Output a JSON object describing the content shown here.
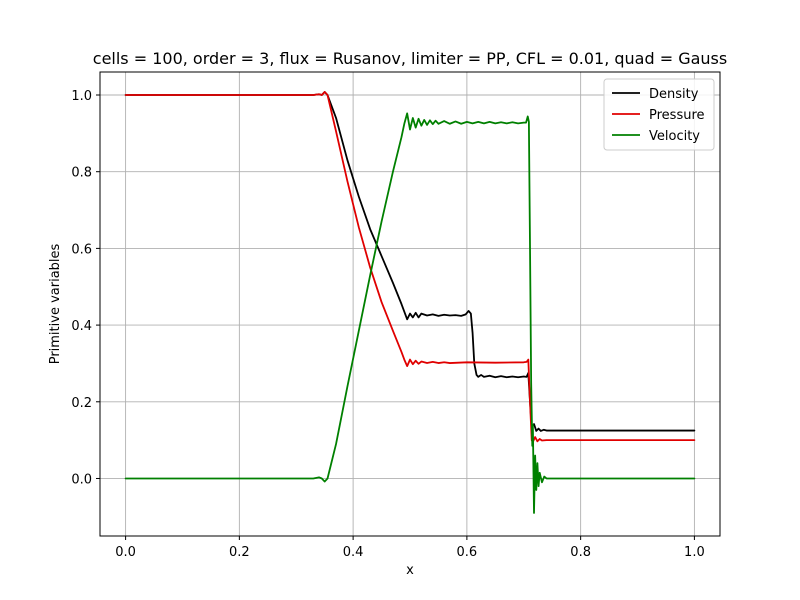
{
  "chart_data": {
    "type": "line",
    "title": "cells = 100, order = 3, flux = Rusanov, limiter = PP, CFL = 0.01, quad = Gauss",
    "xlabel": "x",
    "ylabel": "Primitive variables",
    "xlim": [
      -0.045,
      1.045
    ],
    "ylim": [
      -0.15,
      1.06
    ],
    "xticks": [
      0.0,
      0.2,
      0.4,
      0.6,
      0.8,
      1.0
    ],
    "xtick_labels": [
      "0.0",
      "0.2",
      "0.4",
      "0.6",
      "0.8",
      "1.0"
    ],
    "yticks": [
      0.0,
      0.2,
      0.4,
      0.6,
      0.8,
      1.0
    ],
    "ytick_labels": [
      "0.0",
      "0.2",
      "0.4",
      "0.6",
      "0.8",
      "1.0"
    ],
    "grid": true,
    "legend_position": "top-right",
    "series": [
      {
        "name": "Density",
        "color": "#000000",
        "points": [
          [
            0.0,
            1.0
          ],
          [
            0.33,
            1.0
          ],
          [
            0.34,
            1.002
          ],
          [
            0.345,
            1.0
          ],
          [
            0.35,
            1.008
          ],
          [
            0.355,
            1.0
          ],
          [
            0.37,
            0.94
          ],
          [
            0.39,
            0.83
          ],
          [
            0.41,
            0.735
          ],
          [
            0.43,
            0.65
          ],
          [
            0.45,
            0.58
          ],
          [
            0.47,
            0.51
          ],
          [
            0.485,
            0.455
          ],
          [
            0.49,
            0.435
          ],
          [
            0.495,
            0.415
          ],
          [
            0.5,
            0.43
          ],
          [
            0.505,
            0.42
          ],
          [
            0.51,
            0.432
          ],
          [
            0.515,
            0.42
          ],
          [
            0.52,
            0.43
          ],
          [
            0.53,
            0.425
          ],
          [
            0.54,
            0.428
          ],
          [
            0.55,
            0.424
          ],
          [
            0.56,
            0.427
          ],
          [
            0.57,
            0.425
          ],
          [
            0.58,
            0.426
          ],
          [
            0.59,
            0.424
          ],
          [
            0.598,
            0.428
          ],
          [
            0.603,
            0.437
          ],
          [
            0.607,
            0.43
          ],
          [
            0.61,
            0.38
          ],
          [
            0.613,
            0.3
          ],
          [
            0.617,
            0.27
          ],
          [
            0.62,
            0.265
          ],
          [
            0.625,
            0.27
          ],
          [
            0.63,
            0.265
          ],
          [
            0.64,
            0.268
          ],
          [
            0.65,
            0.264
          ],
          [
            0.66,
            0.267
          ],
          [
            0.67,
            0.264
          ],
          [
            0.68,
            0.266
          ],
          [
            0.69,
            0.264
          ],
          [
            0.7,
            0.266
          ],
          [
            0.705,
            0.265
          ],
          [
            0.708,
            0.275
          ],
          [
            0.711,
            0.2
          ],
          [
            0.714,
            0.135
          ],
          [
            0.718,
            0.142
          ],
          [
            0.722,
            0.124
          ],
          [
            0.726,
            0.13
          ],
          [
            0.73,
            0.124
          ],
          [
            0.735,
            0.127
          ],
          [
            0.74,
            0.125
          ],
          [
            0.76,
            0.125
          ],
          [
            1.0,
            0.125
          ]
        ]
      },
      {
        "name": "Pressure",
        "color": "#e00000",
        "points": [
          [
            0.0,
            1.0
          ],
          [
            0.33,
            1.0
          ],
          [
            0.34,
            1.002
          ],
          [
            0.345,
            1.0
          ],
          [
            0.35,
            1.008
          ],
          [
            0.355,
            1.0
          ],
          [
            0.37,
            0.905
          ],
          [
            0.39,
            0.775
          ],
          [
            0.41,
            0.655
          ],
          [
            0.43,
            0.55
          ],
          [
            0.45,
            0.46
          ],
          [
            0.47,
            0.385
          ],
          [
            0.485,
            0.33
          ],
          [
            0.49,
            0.31
          ],
          [
            0.495,
            0.293
          ],
          [
            0.5,
            0.31
          ],
          [
            0.505,
            0.298
          ],
          [
            0.51,
            0.307
          ],
          [
            0.515,
            0.299
          ],
          [
            0.52,
            0.305
          ],
          [
            0.53,
            0.301
          ],
          [
            0.54,
            0.304
          ],
          [
            0.55,
            0.301
          ],
          [
            0.56,
            0.303
          ],
          [
            0.57,
            0.301
          ],
          [
            0.6,
            0.303
          ],
          [
            0.65,
            0.302
          ],
          [
            0.7,
            0.303
          ],
          [
            0.705,
            0.304
          ],
          [
            0.708,
            0.31
          ],
          [
            0.711,
            0.2
          ],
          [
            0.714,
            0.1
          ],
          [
            0.716,
            0.095
          ],
          [
            0.72,
            0.108
          ],
          [
            0.724,
            0.097
          ],
          [
            0.728,
            0.103
          ],
          [
            0.732,
            0.099
          ],
          [
            0.74,
            0.1
          ],
          [
            0.76,
            0.1
          ],
          [
            1.0,
            0.1
          ]
        ]
      },
      {
        "name": "Velocity",
        "color": "#008000",
        "points": [
          [
            0.0,
            0.0
          ],
          [
            0.33,
            0.0
          ],
          [
            0.34,
            0.003
          ],
          [
            0.345,
            0.0
          ],
          [
            0.35,
            -0.008
          ],
          [
            0.355,
            0.0
          ],
          [
            0.37,
            0.09
          ],
          [
            0.39,
            0.24
          ],
          [
            0.41,
            0.385
          ],
          [
            0.43,
            0.53
          ],
          [
            0.45,
            0.67
          ],
          [
            0.47,
            0.8
          ],
          [
            0.485,
            0.89
          ],
          [
            0.49,
            0.925
          ],
          [
            0.495,
            0.952
          ],
          [
            0.5,
            0.91
          ],
          [
            0.505,
            0.94
          ],
          [
            0.51,
            0.915
          ],
          [
            0.515,
            0.938
          ],
          [
            0.52,
            0.92
          ],
          [
            0.525,
            0.935
          ],
          [
            0.53,
            0.922
          ],
          [
            0.535,
            0.934
          ],
          [
            0.54,
            0.924
          ],
          [
            0.545,
            0.933
          ],
          [
            0.55,
            0.925
          ],
          [
            0.56,
            0.932
          ],
          [
            0.57,
            0.925
          ],
          [
            0.58,
            0.931
          ],
          [
            0.59,
            0.925
          ],
          [
            0.6,
            0.93
          ],
          [
            0.61,
            0.926
          ],
          [
            0.62,
            0.93
          ],
          [
            0.63,
            0.926
          ],
          [
            0.64,
            0.93
          ],
          [
            0.65,
            0.926
          ],
          [
            0.66,
            0.929
          ],
          [
            0.67,
            0.926
          ],
          [
            0.68,
            0.929
          ],
          [
            0.69,
            0.926
          ],
          [
            0.7,
            0.928
          ],
          [
            0.704,
            0.928
          ],
          [
            0.707,
            0.944
          ],
          [
            0.709,
            0.93
          ],
          [
            0.711,
            0.6
          ],
          [
            0.713,
            0.25
          ],
          [
            0.715,
            0.085
          ],
          [
            0.716,
            0.14
          ],
          [
            0.718,
            -0.09
          ],
          [
            0.72,
            0.06
          ],
          [
            0.722,
            -0.03
          ],
          [
            0.724,
            0.04
          ],
          [
            0.726,
            -0.02
          ],
          [
            0.728,
            0.015
          ],
          [
            0.732,
            -0.01
          ],
          [
            0.736,
            0.005
          ],
          [
            0.74,
            0.0
          ],
          [
            0.76,
            0.0
          ],
          [
            1.0,
            0.0
          ]
        ]
      }
    ]
  }
}
